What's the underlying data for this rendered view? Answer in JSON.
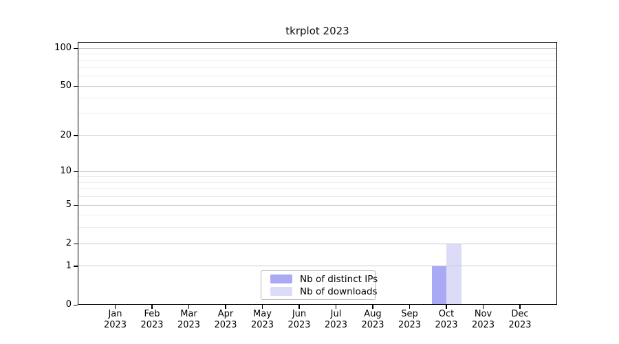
{
  "title": "tkrplot 2023",
  "chart_data": {
    "type": "bar",
    "title": "tkrplot 2023",
    "categories": [
      "Jan",
      "Feb",
      "Mar",
      "Apr",
      "May",
      "Jun",
      "Jul",
      "Aug",
      "Sep",
      "Oct",
      "Nov",
      "Dec"
    ],
    "category_year_label": "2023",
    "series": [
      {
        "name": "Nb of distinct IPs",
        "color": "#aaaaf4",
        "values": [
          0,
          0,
          0,
          0,
          0,
          0,
          0,
          0,
          0,
          1,
          0,
          0
        ]
      },
      {
        "name": "Nb of downloads",
        "color": "#dcdcf9",
        "values": [
          0,
          0,
          0,
          0,
          0,
          0,
          0,
          0,
          0,
          2,
          0,
          0
        ]
      }
    ],
    "y_scale": "log1p",
    "ylim": [
      0,
      100
    ],
    "y_major_ticks": [
      0,
      1,
      2,
      5,
      10,
      20,
      50,
      100
    ],
    "y_minor_gridlines": [
      3,
      4,
      6,
      7,
      8,
      9,
      30,
      40,
      60,
      70,
      80,
      90
    ],
    "grid": true,
    "legend_position": "bottom-center-inside",
    "colors": {
      "major_grid": "#c9c9c9",
      "minor_grid": "#ececec",
      "axis": "#000000",
      "background": "#ffffff",
      "text": "#111111"
    }
  }
}
